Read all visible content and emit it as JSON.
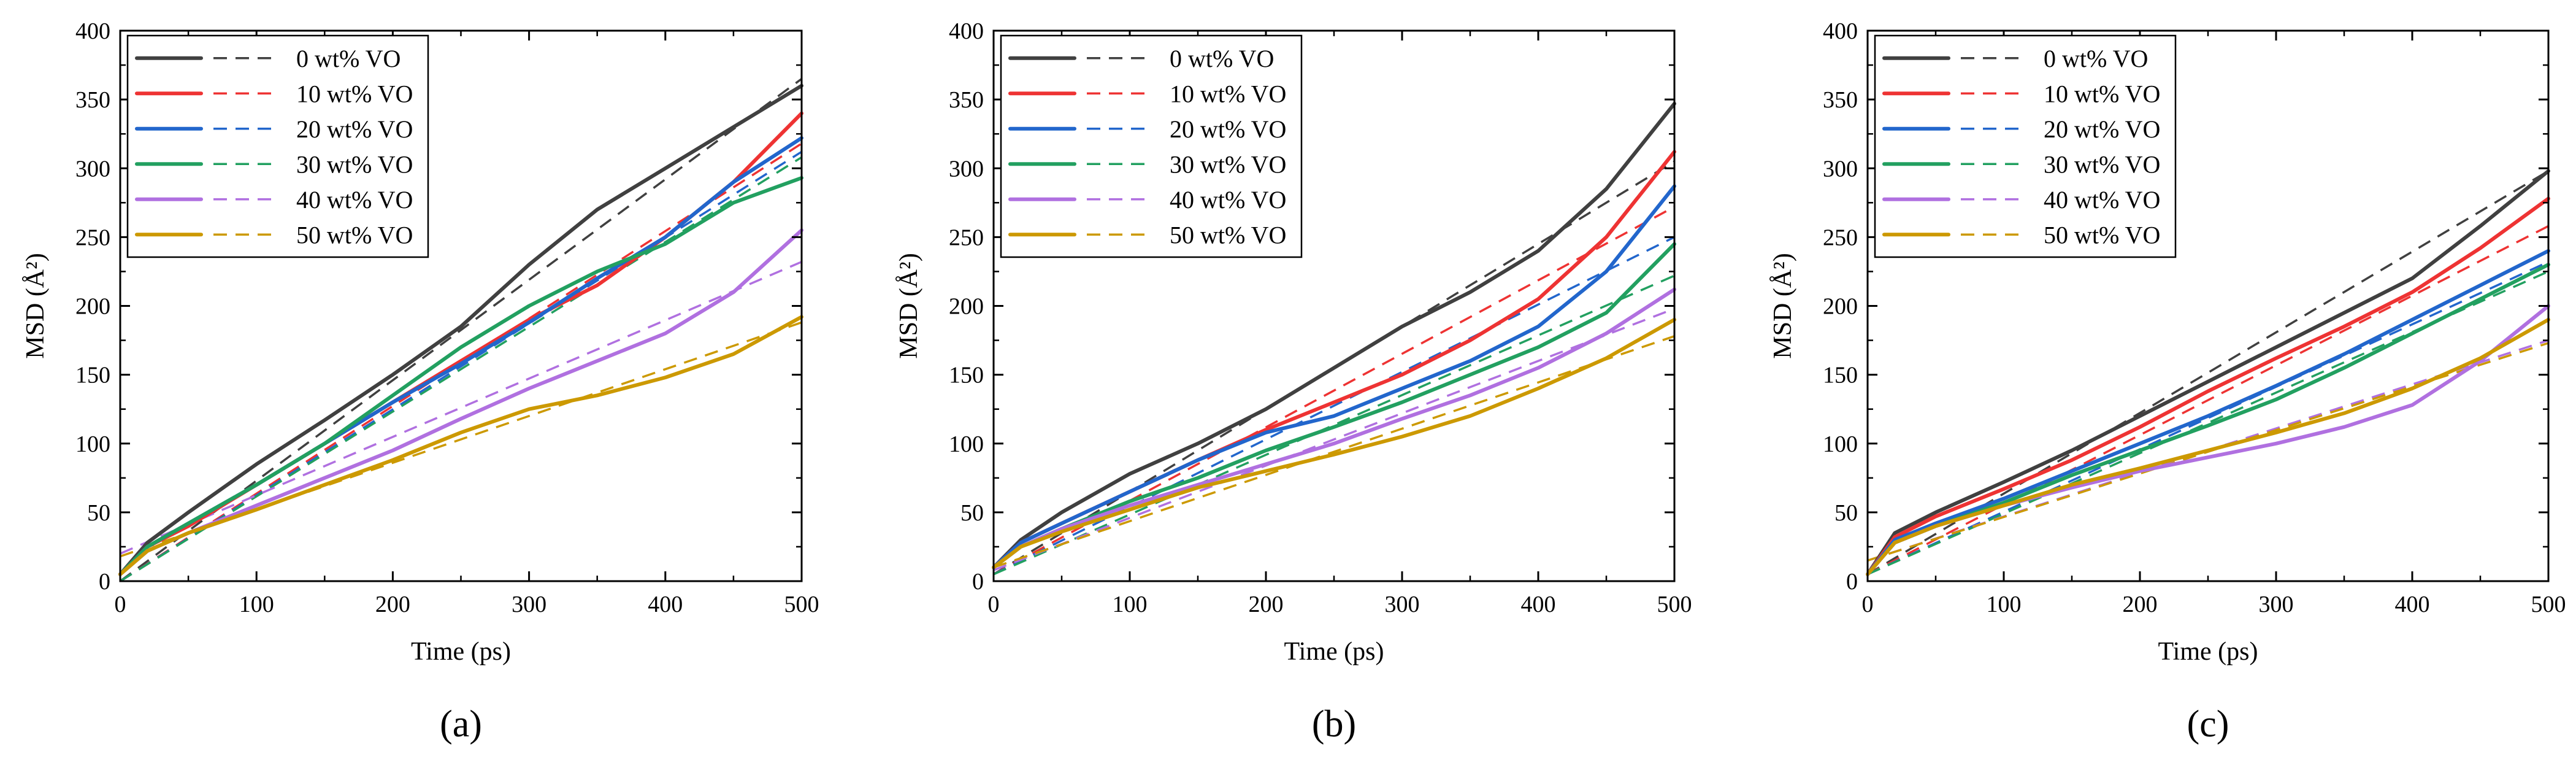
{
  "figure": {
    "panel_labels": [
      "(a)",
      "(b)",
      "(c)"
    ]
  },
  "series_styles": {
    "colors": [
      "#404040",
      "#ee3333",
      "#2266cc",
      "#22a060",
      "#b070e0",
      "#cc9900"
    ]
  },
  "chart_data": [
    {
      "type": "line",
      "panel": "(a)",
      "xlabel": "Time (ps)",
      "ylabel": "MSD (Å²)",
      "xlim": [
        0,
        500
      ],
      "ylim": [
        0,
        400
      ],
      "xticks": [
        0,
        100,
        200,
        300,
        400,
        500
      ],
      "yticks": [
        0,
        50,
        100,
        150,
        200,
        250,
        300,
        350,
        400
      ],
      "grid": false,
      "legend": {
        "placement": "top-left",
        "entries": [
          "0  wt% VO",
          "10 wt% VO",
          "20 wt% VO",
          "30 wt% VO",
          "40 wt% VO",
          "50 wt% VO"
        ]
      },
      "series": [
        {
          "name": "0  wt% VO",
          "line_style": "solid",
          "x": [
            0,
            20,
            50,
            100,
            150,
            200,
            250,
            300,
            350,
            400,
            450,
            500
          ],
          "y": [
            5,
            28,
            50,
            85,
            117,
            150,
            185,
            230,
            270,
            300,
            330,
            360
          ]
        },
        {
          "name": "0  wt% VO",
          "line_style": "dashed",
          "x": [
            0,
            500
          ],
          "y": [
            0,
            365
          ]
        },
        {
          "name": "10 wt% VO",
          "line_style": "solid",
          "x": [
            0,
            20,
            50,
            100,
            150,
            200,
            250,
            300,
            350,
            400,
            450,
            500
          ],
          "y": [
            5,
            25,
            40,
            70,
            100,
            130,
            160,
            190,
            215,
            250,
            290,
            340
          ]
        },
        {
          "name": "10 wt% VO",
          "line_style": "dashed",
          "x": [
            0,
            500
          ],
          "y": [
            0,
            318
          ]
        },
        {
          "name": "20 wt% VO",
          "line_style": "solid",
          "x": [
            0,
            20,
            50,
            100,
            150,
            200,
            250,
            300,
            350,
            400,
            450,
            500
          ],
          "y": [
            5,
            25,
            42,
            70,
            100,
            130,
            158,
            188,
            220,
            250,
            290,
            322
          ]
        },
        {
          "name": "20 wt% VO",
          "line_style": "dashed",
          "x": [
            0,
            500
          ],
          "y": [
            0,
            312
          ]
        },
        {
          "name": "30 wt% VO",
          "line_style": "solid",
          "x": [
            0,
            20,
            50,
            100,
            150,
            200,
            250,
            300,
            350,
            400,
            450,
            500
          ],
          "y": [
            5,
            25,
            42,
            70,
            100,
            135,
            170,
            200,
            225,
            245,
            275,
            293
          ]
        },
        {
          "name": "30 wt% VO",
          "line_style": "dashed",
          "x": [
            0,
            500
          ],
          "y": [
            0,
            308
          ]
        },
        {
          "name": "40 wt% VO",
          "line_style": "solid",
          "x": [
            0,
            20,
            50,
            100,
            150,
            200,
            250,
            300,
            350,
            400,
            450,
            500
          ],
          "y": [
            5,
            22,
            35,
            55,
            75,
            95,
            118,
            140,
            160,
            180,
            210,
            255
          ]
        },
        {
          "name": "40 wt% VO",
          "line_style": "dashed",
          "x": [
            0,
            500
          ],
          "y": [
            20,
            232
          ]
        },
        {
          "name": "50 wt% VO",
          "line_style": "solid",
          "x": [
            0,
            20,
            50,
            100,
            150,
            200,
            250,
            300,
            350,
            400,
            450,
            500
          ],
          "y": [
            5,
            22,
            35,
            52,
            70,
            88,
            108,
            125,
            135,
            148,
            165,
            192
          ]
        },
        {
          "name": "50 wt% VO",
          "line_style": "dashed",
          "x": [
            0,
            500
          ],
          "y": [
            18,
            188
          ]
        }
      ]
    },
    {
      "type": "line",
      "panel": "(b)",
      "xlabel": "Time (ps)",
      "ylabel": "MSD (Å²)",
      "xlim": [
        0,
        500
      ],
      "ylim": [
        0,
        400
      ],
      "xticks": [
        0,
        100,
        200,
        300,
        400,
        500
      ],
      "yticks": [
        0,
        50,
        100,
        150,
        200,
        250,
        300,
        350,
        400
      ],
      "grid": false,
      "legend": {
        "placement": "top-left",
        "entries": [
          "0 wt% VO",
          "10 wt% VO",
          "20 wt% VO",
          "30 wt% VO",
          "40 wt% VO",
          "50 wt% VO"
        ]
      },
      "series": [
        {
          "name": "0 wt% VO",
          "line_style": "solid",
          "x": [
            0,
            20,
            50,
            100,
            150,
            200,
            250,
            300,
            350,
            400,
            450,
            500
          ],
          "y": [
            10,
            30,
            50,
            78,
            100,
            125,
            155,
            185,
            210,
            240,
            285,
            347
          ]
        },
        {
          "name": "0 wt% VO",
          "line_style": "dashed",
          "x": [
            0,
            500
          ],
          "y": [
            5,
            305
          ]
        },
        {
          "name": "10 wt% VO",
          "line_style": "solid",
          "x": [
            0,
            20,
            50,
            100,
            150,
            200,
            250,
            300,
            350,
            400,
            450,
            500
          ],
          "y": [
            10,
            28,
            42,
            65,
            88,
            110,
            130,
            150,
            175,
            205,
            250,
            312
          ]
        },
        {
          "name": "10 wt% VO",
          "line_style": "dashed",
          "x": [
            0,
            500
          ],
          "y": [
            5,
            272
          ]
        },
        {
          "name": "20 wt% VO",
          "line_style": "solid",
          "x": [
            0,
            20,
            50,
            100,
            150,
            200,
            250,
            300,
            350,
            400,
            450,
            500
          ],
          "y": [
            10,
            28,
            42,
            65,
            88,
            108,
            120,
            140,
            160,
            185,
            225,
            287
          ]
        },
        {
          "name": "20 wt% VO",
          "line_style": "dashed",
          "x": [
            0,
            500
          ],
          "y": [
            5,
            250
          ]
        },
        {
          "name": "30 wt% VO",
          "line_style": "solid",
          "x": [
            0,
            20,
            50,
            100,
            150,
            200,
            250,
            300,
            350,
            400,
            450,
            500
          ],
          "y": [
            10,
            25,
            38,
            58,
            75,
            95,
            112,
            130,
            150,
            170,
            195,
            245
          ]
        },
        {
          "name": "30 wt% VO",
          "line_style": "dashed",
          "x": [
            0,
            500
          ],
          "y": [
            5,
            222
          ]
        },
        {
          "name": "40 wt% VO",
          "line_style": "solid",
          "x": [
            0,
            20,
            50,
            100,
            150,
            200,
            250,
            300,
            350,
            400,
            450,
            500
          ],
          "y": [
            10,
            25,
            38,
            55,
            70,
            85,
            100,
            118,
            135,
            155,
            180,
            212
          ]
        },
        {
          "name": "40 wt% VO",
          "line_style": "dashed",
          "x": [
            0,
            500
          ],
          "y": [
            8,
            198
          ]
        },
        {
          "name": "50 wt% VO",
          "line_style": "solid",
          "x": [
            0,
            20,
            50,
            100,
            150,
            200,
            250,
            300,
            350,
            400,
            450,
            500
          ],
          "y": [
            10,
            25,
            36,
            52,
            68,
            80,
            92,
            105,
            120,
            140,
            162,
            190
          ]
        },
        {
          "name": "50 wt% VO",
          "line_style": "dashed",
          "x": [
            0,
            500
          ],
          "y": [
            10,
            178
          ]
        }
      ]
    },
    {
      "type": "line",
      "panel": "(c)",
      "xlabel": "Time (ps)",
      "ylabel": "MSD (Å²)",
      "xlim": [
        0,
        500
      ],
      "ylim": [
        0,
        400
      ],
      "xticks": [
        0,
        100,
        200,
        300,
        400,
        500
      ],
      "yticks": [
        0,
        50,
        100,
        150,
        200,
        250,
        300,
        350,
        400
      ],
      "grid": false,
      "legend": {
        "placement": "top-left",
        "entries": [
          "0  wt% VO",
          "10 wt% VO",
          "20 wt% VO",
          "30 wt% VO",
          "40 wt% VO",
          "50 wt% VO"
        ]
      },
      "series": [
        {
          "name": "0  wt% VO",
          "line_style": "solid",
          "x": [
            0,
            20,
            50,
            100,
            150,
            200,
            250,
            300,
            350,
            400,
            450,
            500
          ],
          "y": [
            5,
            35,
            50,
            72,
            95,
            120,
            145,
            170,
            195,
            220,
            258,
            298
          ]
        },
        {
          "name": "0  wt% VO",
          "line_style": "dashed",
          "x": [
            0,
            500
          ],
          "y": [
            5,
            298
          ]
        },
        {
          "name": "10 wt% VO",
          "line_style": "solid",
          "x": [
            0,
            20,
            50,
            100,
            150,
            200,
            250,
            300,
            350,
            400,
            450,
            500
          ],
          "y": [
            5,
            32,
            47,
            67,
            88,
            112,
            138,
            162,
            185,
            210,
            242,
            278
          ]
        },
        {
          "name": "10 wt% VO",
          "line_style": "dashed",
          "x": [
            0,
            500
          ],
          "y": [
            5,
            258
          ]
        },
        {
          "name": "20 wt% VO",
          "line_style": "solid",
          "x": [
            0,
            20,
            50,
            100,
            150,
            200,
            250,
            300,
            350,
            400,
            450,
            500
          ],
          "y": [
            5,
            30,
            42,
            60,
            80,
            100,
            120,
            142,
            165,
            190,
            215,
            240
          ]
        },
        {
          "name": "20 wt% VO",
          "line_style": "dashed",
          "x": [
            0,
            500
          ],
          "y": [
            5,
            232
          ]
        },
        {
          "name": "30 wt% VO",
          "line_style": "solid",
          "x": [
            0,
            20,
            50,
            100,
            150,
            200,
            250,
            300,
            350,
            400,
            450,
            500
          ],
          "y": [
            5,
            28,
            40,
            57,
            77,
            95,
            113,
            132,
            155,
            180,
            205,
            230
          ]
        },
        {
          "name": "30 wt% VO",
          "line_style": "dashed",
          "x": [
            0,
            500
          ],
          "y": [
            5,
            225
          ]
        },
        {
          "name": "40 wt% VO",
          "line_style": "solid",
          "x": [
            0,
            20,
            50,
            100,
            150,
            200,
            250,
            300,
            350,
            400,
            450,
            500
          ],
          "y": [
            5,
            28,
            40,
            55,
            68,
            80,
            90,
            100,
            112,
            128,
            160,
            200
          ]
        },
        {
          "name": "40 wt% VO",
          "line_style": "dashed",
          "x": [
            0,
            500
          ],
          "y": [
            15,
            175
          ]
        },
        {
          "name": "50 wt% VO",
          "line_style": "solid",
          "x": [
            0,
            20,
            50,
            100,
            150,
            200,
            250,
            300,
            350,
            400,
            450,
            500
          ],
          "y": [
            5,
            28,
            40,
            55,
            70,
            82,
            95,
            108,
            122,
            140,
            162,
            190
          ]
        },
        {
          "name": "50 wt% VO",
          "line_style": "dashed",
          "x": [
            0,
            500
          ],
          "y": [
            15,
            173
          ]
        }
      ]
    }
  ]
}
